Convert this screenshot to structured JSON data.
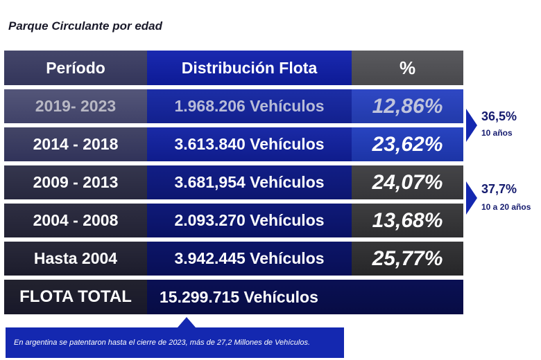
{
  "title": "Parque Circulante por edad",
  "headers": [
    "Período",
    "Distribución Flota",
    "%"
  ],
  "rows": [
    {
      "period": "2019- 2023",
      "fleet": "1.968.206 Vehículos",
      "pct": "12,86%"
    },
    {
      "period": "2014 - 2018",
      "fleet": "3.613.840 Vehículos",
      "pct": "23,62%"
    },
    {
      "period": "2009 - 2013",
      "fleet": "3.681,954 Vehículos",
      "pct": "24,07%"
    },
    {
      "period": "2004 - 2008",
      "fleet": "2.093.270 Vehículos",
      "pct": "13,68%"
    },
    {
      "period": "Hasta 2004",
      "fleet": "3.942.445 Vehículos",
      "pct": "25,77%"
    }
  ],
  "total": {
    "label": "FLOTA TOTAL",
    "fleet": "15.299.715 Vehículos"
  },
  "groups": [
    {
      "pct": "36,5%",
      "label": "10 años"
    },
    {
      "pct": "37,7%",
      "label": "10 a 20 años"
    }
  ],
  "note": "En argentina se patentaron hasta el cierre de 2023, más de 27,2 Millones de Vehículos.",
  "colors": {
    "accent_blue": "#1428b0",
    "navy": "#0a1054",
    "text_dark": "#141a6e"
  }
}
